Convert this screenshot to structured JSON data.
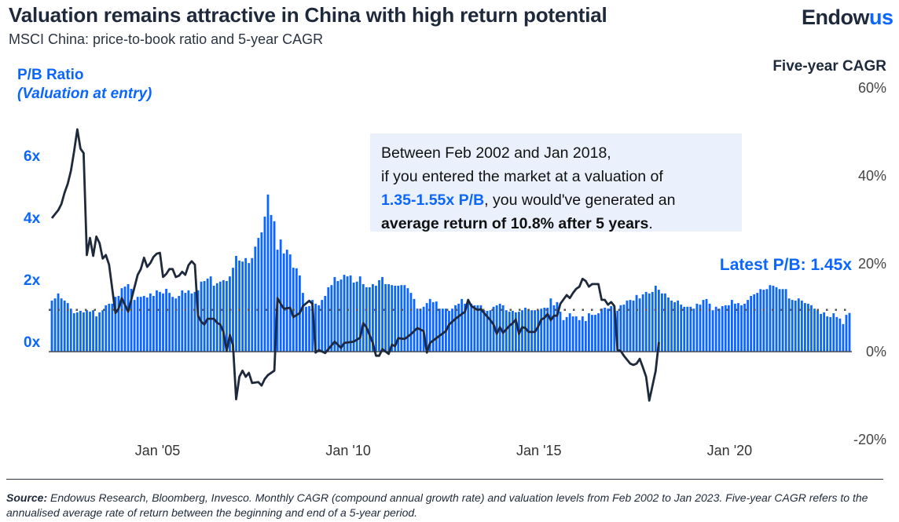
{
  "header": {
    "title": "Valuation remains attractive in China with high return potential",
    "subtitle": "MSCI China: price-to-book ratio and 5-year CAGR",
    "logo_text": "Endowus",
    "logo_part1": "Endow",
    "logo_part2": "us"
  },
  "annotation": {
    "line1": "Between Feb 2002 and Jan 2018,",
    "line2": "if you entered the market at a valuation of",
    "highlight": "1.35-1.55x P/B",
    "line3_rest": ", you would've generated an",
    "bold": "average return of 10.8% after 5 years",
    "end": "."
  },
  "latest_label": "Latest P/B: 1.45x",
  "footer": {
    "source_label": "Source:",
    "source_text": " Endowus Research, Bloomberg, Invesco. Monthly CAGR (compound annual growth rate) and valuation levels from Feb 2002 to Jan 2023. Five-year CAGR refers to the annualised average rate of return between the beginning and end of a 5-year period."
  },
  "colors": {
    "bars": "#0a66ff",
    "line": "#1e2a3b",
    "accent": "#0a66ff",
    "annotation_bg": "#eaf1fc"
  },
  "chart_data": {
    "type": "bar+line",
    "left_axis": {
      "label_line1": "P/B Ratio",
      "label_line2": "(Valuation at entry)",
      "ticks": [
        0,
        2,
        4,
        6
      ],
      "tick_labels": [
        "0x",
        "2x",
        "4x",
        "6x"
      ]
    },
    "right_axis": {
      "label": "Five-year CAGR",
      "ticks": [
        -20,
        0,
        20,
        40,
        60
      ],
      "tick_labels": [
        "-20%",
        "0%",
        "20%",
        "40%",
        "60%"
      ],
      "ylim": [
        -20,
        60
      ]
    },
    "x_axis": {
      "range": [
        "2002-02",
        "2023-01"
      ],
      "ticks": [
        "2005-01",
        "2010-01",
        "2015-01",
        "2020-01"
      ],
      "tick_labels": [
        "Jan '05",
        "Jan '10",
        "Jan '15",
        "Jan '20"
      ]
    },
    "reference_line_pb": 1.55,
    "pb_series": {
      "axis": "left",
      "frequency": "monthly",
      "start": "2002-02",
      "end": "2023-01",
      "values": [
        1.85,
        1.92,
        2.08,
        1.92,
        1.85,
        1.77,
        1.59,
        1.44,
        1.47,
        1.52,
        1.47,
        1.54,
        1.49,
        1.54,
        1.34,
        1.47,
        1.54,
        1.7,
        1.75,
        1.75,
        1.97,
        2.0,
        2.25,
        2.3,
        2.38,
        2.23,
        1.87,
        1.97,
        1.97,
        2.0,
        1.95,
        2.08,
        2.0,
        2.18,
        2.13,
        2.08,
        2.23,
        2.1,
        1.97,
        1.92,
        2.0,
        2.18,
        2.1,
        2.18,
        2.08,
        2.13,
        2.18,
        2.46,
        2.48,
        2.56,
        2.63,
        2.33,
        2.41,
        2.46,
        2.51,
        2.48,
        2.63,
        2.91,
        3.29,
        3.14,
        3.11,
        3.22,
        3.06,
        3.22,
        3.59,
        3.87,
        4.05,
        4.56,
        5.27,
        4.61,
        4.41,
        3.49,
        3.82,
        3.37,
        3.49,
        3.34,
        2.91,
        2.89,
        2.66,
        2.1,
        1.65,
        1.67,
        1.87,
        1.75,
        1.7,
        1.87,
        2.0,
        2.28,
        2.35,
        2.61,
        2.48,
        2.53,
        2.68,
        2.63,
        2.66,
        2.43,
        2.46,
        2.63,
        2.38,
        2.28,
        2.28,
        2.38,
        2.33,
        2.51,
        2.61,
        2.38,
        2.38,
        2.35,
        2.33,
        2.33,
        2.35,
        2.35,
        2.25,
        2.1,
        1.9,
        1.59,
        1.59,
        1.65,
        1.77,
        1.9,
        1.8,
        1.82,
        1.59,
        1.59,
        1.59,
        1.52,
        1.59,
        1.7,
        1.75,
        1.9,
        1.75,
        1.85,
        1.75,
        1.7,
        1.7,
        1.7,
        1.54,
        1.52,
        1.54,
        1.65,
        1.7,
        1.75,
        1.7,
        1.54,
        1.49,
        1.52,
        1.47,
        1.49,
        1.54,
        1.62,
        1.57,
        1.54,
        1.54,
        1.54,
        1.59,
        1.62,
        1.62,
        1.92,
        1.7,
        1.8,
        1.49,
        1.22,
        1.32,
        1.44,
        1.34,
        1.34,
        1.22,
        1.34,
        1.19,
        1.44,
        1.39,
        1.39,
        1.44,
        1.59,
        1.62,
        1.59,
        1.67,
        1.67,
        1.52,
        1.7,
        1.72,
        1.85,
        1.87,
        1.85,
        2.03,
        1.92,
        2.05,
        2.13,
        2.08,
        2.13,
        2.33,
        2.2,
        2.08,
        2.08,
        1.95,
        1.85,
        1.8,
        1.85,
        1.72,
        1.65,
        1.65,
        1.65,
        1.59,
        1.75,
        1.72,
        1.87,
        1.9,
        1.75,
        1.54,
        1.65,
        1.59,
        1.67,
        1.7,
        1.7,
        1.87,
        1.75,
        1.77,
        1.7,
        1.75,
        1.87,
        2.0,
        2.05,
        2.1,
        2.22,
        2.2,
        2.22,
        2.35,
        2.33,
        2.28,
        2.22,
        2.22,
        2.22,
        1.92,
        1.87,
        1.85,
        1.92,
        1.85,
        1.77,
        1.75,
        1.7,
        1.59,
        1.54,
        1.42,
        1.47,
        1.34,
        1.32,
        1.44,
        1.32,
        1.27,
        1.09,
        1.39,
        1.45
      ]
    },
    "cagr_series": {
      "axis": "right",
      "points": [
        [
          "2002-02",
          30.2
        ],
        [
          "2002-04",
          32
        ],
        [
          "2002-05",
          33.4
        ],
        [
          "2002-06",
          36
        ],
        [
          "2002-07",
          38
        ],
        [
          "2002-08",
          41
        ],
        [
          "2002-09",
          45.4
        ],
        [
          "2002-10",
          50.4
        ],
        [
          "2002-11",
          46
        ],
        [
          "2002-12",
          45
        ],
        [
          "2003-01",
          21.8
        ],
        [
          "2003-02",
          25.7
        ],
        [
          "2003-03",
          21.6
        ],
        [
          "2003-04",
          26
        ],
        [
          "2003-05",
          24.5
        ],
        [
          "2003-06",
          21
        ],
        [
          "2003-07",
          21.8
        ],
        [
          "2003-08",
          19.6
        ],
        [
          "2003-10",
          8.6
        ],
        [
          "2003-11",
          9.6
        ],
        [
          "2003-12",
          12
        ],
        [
          "2004-02",
          8.9
        ],
        [
          "2004-05",
          17.3
        ],
        [
          "2004-06",
          18.6
        ],
        [
          "2004-07",
          21.2
        ],
        [
          "2004-08",
          19.1
        ],
        [
          "2004-09",
          20
        ],
        [
          "2004-10",
          21.4
        ],
        [
          "2004-11",
          22.1
        ],
        [
          "2004-12",
          22.3
        ],
        [
          "2005-01",
          16.8
        ],
        [
          "2005-02",
          17.5
        ],
        [
          "2005-03",
          18.6
        ],
        [
          "2005-04",
          18.6
        ],
        [
          "2005-05",
          16.8
        ],
        [
          "2005-06",
          17.1
        ],
        [
          "2005-07",
          18
        ],
        [
          "2005-08",
          17.3
        ],
        [
          "2005-09",
          19.5
        ],
        [
          "2005-10",
          20.4
        ],
        [
          "2005-11",
          19.6
        ],
        [
          "2005-12",
          8
        ],
        [
          "2006-01",
          6.6
        ],
        [
          "2006-02",
          6
        ],
        [
          "2006-03",
          7.3
        ],
        [
          "2006-05",
          7.3
        ],
        [
          "2006-06",
          6.4
        ],
        [
          "2006-07",
          6
        ],
        [
          "2006-08",
          4.3
        ],
        [
          "2006-09",
          0
        ],
        [
          "2006-10",
          3.6
        ],
        [
          "2006-11",
          1.3
        ],
        [
          "2006-12",
          -11
        ],
        [
          "2007-01",
          -5.9
        ],
        [
          "2007-02",
          -4.5
        ],
        [
          "2007-03",
          -5.9
        ],
        [
          "2007-04",
          -5
        ],
        [
          "2007-05",
          -7.3
        ],
        [
          "2007-07",
          -7.1
        ],
        [
          "2007-08",
          -7.9
        ],
        [
          "2007-09",
          -6.4
        ],
        [
          "2007-10",
          -5.5
        ],
        [
          "2007-12",
          -4.5
        ],
        [
          "2008-01",
          12
        ],
        [
          "2008-02",
          10.7
        ],
        [
          "2008-03",
          9.6
        ],
        [
          "2008-05",
          9.8
        ],
        [
          "2008-06",
          7.7
        ],
        [
          "2008-08",
          8.6
        ],
        [
          "2008-09",
          10.2
        ],
        [
          "2008-11",
          11.4
        ],
        [
          "2008-12",
          10.7
        ],
        [
          "2009-01",
          -0.4
        ],
        [
          "2009-02",
          0.2
        ],
        [
          "2009-04",
          -0.5
        ],
        [
          "2009-05",
          0.4
        ],
        [
          "2009-07",
          2.1
        ],
        [
          "2009-09",
          0.7
        ],
        [
          "2009-10",
          1.8
        ],
        [
          "2010-01",
          2.1
        ],
        [
          "2010-03",
          3
        ],
        [
          "2010-04",
          6.3
        ],
        [
          "2010-05",
          5.4
        ],
        [
          "2010-07",
          1.8
        ],
        [
          "2010-08",
          -1.1
        ],
        [
          "2010-09",
          -1.1
        ],
        [
          "2010-10",
          0.4
        ],
        [
          "2010-12",
          -0.7
        ],
        [
          "2011-01",
          1.4
        ],
        [
          "2011-02",
          1.1
        ],
        [
          "2011-03",
          2.9
        ],
        [
          "2011-05",
          2.7
        ],
        [
          "2011-07",
          3.8
        ],
        [
          "2011-09",
          5.2
        ],
        [
          "2011-11",
          4.5
        ],
        [
          "2011-12",
          -0.4
        ],
        [
          "2012-01",
          1.8
        ],
        [
          "2012-03",
          2.9
        ],
        [
          "2012-06",
          4.5
        ],
        [
          "2012-07",
          6
        ],
        [
          "2012-09",
          7.3
        ],
        [
          "2012-11",
          8.4
        ],
        [
          "2012-12",
          8.9
        ],
        [
          "2013-01",
          11.6
        ],
        [
          "2013-02",
          10.2
        ],
        [
          "2013-04",
          9.3
        ],
        [
          "2013-05",
          9.5
        ],
        [
          "2013-06",
          8.6
        ],
        [
          "2013-08",
          7
        ],
        [
          "2013-09",
          6
        ],
        [
          "2013-10",
          3.9
        ],
        [
          "2013-11",
          5.4
        ],
        [
          "2013-12",
          4.1
        ],
        [
          "2014-02",
          5.7
        ],
        [
          "2014-03",
          6.3
        ],
        [
          "2014-04",
          7.1
        ],
        [
          "2014-05",
          3.9
        ],
        [
          "2014-06",
          5.4
        ],
        [
          "2014-07",
          5.2
        ],
        [
          "2014-08",
          4.3
        ],
        [
          "2014-10",
          4.3
        ],
        [
          "2014-11",
          5.5
        ],
        [
          "2014-12",
          7.1
        ],
        [
          "2015-01",
          7.5
        ],
        [
          "2015-02",
          8.4
        ],
        [
          "2015-03",
          7
        ],
        [
          "2015-04",
          8
        ],
        [
          "2015-05",
          8
        ],
        [
          "2015-06",
          10.7
        ],
        [
          "2015-08",
          12.7
        ],
        [
          "2015-09",
          12
        ],
        [
          "2015-10",
          13.2
        ],
        [
          "2015-11",
          14.1
        ],
        [
          "2015-12",
          14.6
        ],
        [
          "2016-01",
          16.4
        ],
        [
          "2016-02",
          15.9
        ],
        [
          "2016-03",
          14.6
        ],
        [
          "2016-04",
          15.2
        ],
        [
          "2016-06",
          15.2
        ],
        [
          "2016-07",
          11.6
        ],
        [
          "2016-08",
          11.6
        ],
        [
          "2016-09",
          10.5
        ],
        [
          "2016-10",
          11.1
        ],
        [
          "2016-11",
          10.2
        ],
        [
          "2016-12",
          0.2
        ],
        [
          "2017-01",
          0
        ],
        [
          "2017-02",
          -1.1
        ],
        [
          "2017-04",
          -2.9
        ],
        [
          "2017-05",
          -3.2
        ],
        [
          "2017-06",
          -2.9
        ],
        [
          "2017-07",
          -1.8
        ],
        [
          "2017-08",
          -3.8
        ],
        [
          "2017-09",
          -5.9
        ],
        [
          "2017-10",
          -11.3
        ],
        [
          "2017-12",
          -4.6
        ],
        [
          "2018-01",
          2
        ]
      ]
    },
    "grid": false,
    "legend": "none"
  }
}
